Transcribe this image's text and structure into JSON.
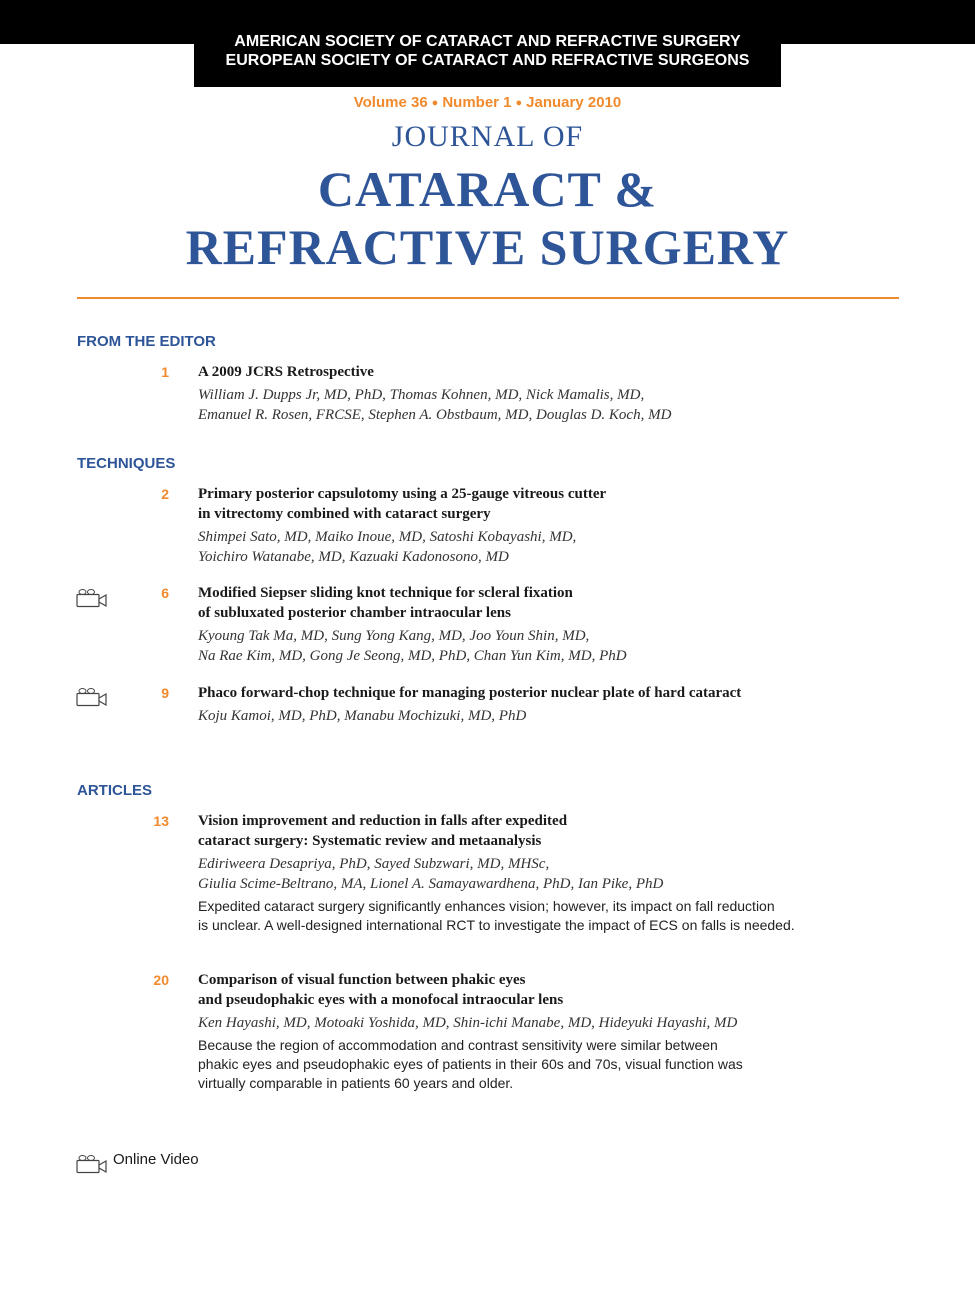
{
  "header": {
    "society_1": "AMERICAN SOCIETY OF CATARACT AND REFRACTIVE SURGERY",
    "society_2": "EUROPEAN SOCIETY OF CATARACT AND REFRACTIVE SURGEONS"
  },
  "issue": {
    "volume": "Volume 36",
    "number": "Number 1",
    "date": "January 2010"
  },
  "journal": {
    "prefix": "JOURNAL OF",
    "title_line1": "CATARACT &",
    "title_line2": "REFRACTIVE SURGERY"
  },
  "sections": {
    "from_editor": "FROM THE EDITOR",
    "techniques": "TECHNIQUES",
    "articles": "ARTICLES"
  },
  "entries": [
    {
      "page": "1",
      "title": [
        "A 2009 JCRS Retrospective"
      ],
      "authors": [
        "William J. Dupps Jr, MD, PhD, Thomas Kohnen, MD, Nick Mamalis, MD,",
        "Emanuel R. Rosen, FRCSE, Stephen A. Obstbaum, MD, Douglas D. Koch, MD"
      ]
    },
    {
      "page": "2",
      "title": [
        "Primary posterior capsulotomy using a 25-gauge vitreous cutter",
        "in vitrectomy combined with cataract surgery"
      ],
      "authors": [
        "Shimpei Sato, MD, Maiko Inoue, MD, Satoshi Kobayashi, MD,",
        "Yoichiro Watanabe, MD, Kazuaki Kadonosono, MD"
      ]
    },
    {
      "page": "6",
      "title": [
        "Modified Siepser sliding knot technique for scleral fixation",
        "of subluxated posterior chamber intraocular lens"
      ],
      "authors": [
        "Kyoung Tak Ma, MD, Sung Yong Kang, MD, Joo Youn Shin, MD,",
        "Na Rae Kim, MD, Gong Je Seong, MD, PhD, Chan Yun Kim, MD, PhD"
      ]
    },
    {
      "page": "9",
      "title": [
        "Phaco forward-chop technique for managing posterior nuclear plate of hard cataract"
      ],
      "authors": [
        "Koju Kamoi, MD, PhD, Manabu Mochizuki, MD, PhD"
      ]
    },
    {
      "page": "13",
      "title": [
        "Vision improvement and reduction in falls after expedited",
        "cataract surgery: Systematic review and metaanalysis"
      ],
      "authors": [
        "Ediriweera Desapriya, PhD, Sayed Subzwari, MD, MHSc,",
        "Giulia Scime-Beltrano, MA, Lionel A. Samayawardhena, PhD, Ian Pike, PhD"
      ],
      "summary": [
        "Expedited cataract surgery significantly enhances vision; however, its impact on fall reduction",
        "is unclear. A well-designed international RCT to investigate the impact of ECS on falls is needed."
      ]
    },
    {
      "page": "20",
      "title": [
        "Comparison of visual function between phakic eyes",
        "and pseudophakic eyes with a monofocal intraocular lens"
      ],
      "authors": [
        "Ken Hayashi, MD, Motoaki Yoshida, MD, Shin-ichi Manabe, MD, Hideyuki Hayashi, MD"
      ],
      "summary": [
        "Because the region of accommodation and contrast sensitivity were similar between",
        "phakic eyes and pseudophakic eyes of patients in their 60s and 70s, visual function was",
        "virtually comparable in patients 60 years and older."
      ]
    }
  ],
  "legend": {
    "icon": "video-camera-icon",
    "label": "Online Video"
  },
  "colors": {
    "accent_orange": "#f08a2c",
    "journal_blue": "#2e5597"
  }
}
